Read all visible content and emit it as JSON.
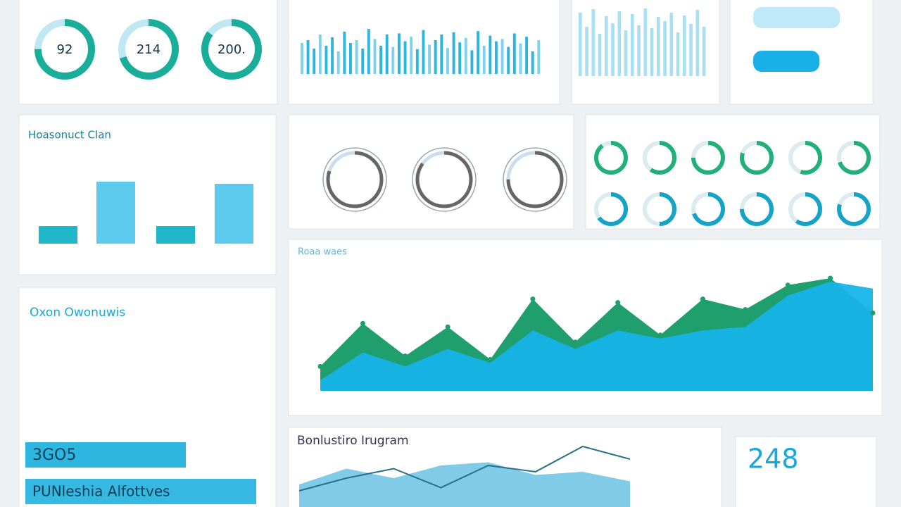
{
  "gauges": [
    {
      "label": "92",
      "percent": 75
    },
    {
      "label": "214",
      "percent": 70
    },
    {
      "label": "200.",
      "percent": 85
    }
  ],
  "column_panel": {
    "values": [
      55,
      60,
      45,
      70,
      50,
      65,
      40,
      75,
      55,
      60,
      45,
      80,
      62,
      50,
      70,
      48,
      72,
      58,
      66,
      44,
      78,
      52,
      60,
      70,
      46,
      74,
      56,
      64,
      42,
      76,
      50,
      68,
      58,
      62,
      48,
      72,
      54,
      66,
      40,
      60
    ]
  },
  "light_bars": {
    "values": [
      90,
      70,
      95,
      60,
      85,
      75,
      92,
      65,
      88,
      72,
      96,
      68,
      84,
      78,
      90,
      62,
      86,
      74,
      94,
      70
    ]
  },
  "hbars": {
    "values": [
      85,
      65
    ]
  },
  "bar_panel": {
    "title": "Hoasonuct Clan",
    "values": [
      25,
      88,
      25,
      85
    ]
  },
  "ring_panel": {
    "values": [
      80,
      85,
      75
    ]
  },
  "small_gauges": {
    "values": [
      90,
      60,
      75,
      80,
      55,
      70,
      65,
      50,
      70,
      75,
      60,
      80
    ]
  },
  "area_panel": {
    "title": "Roaa waes",
    "ylim": [
      0,
      100
    ],
    "series": [
      {
        "color": "#1f9e6e",
        "values": [
          21,
          58,
          30,
          55,
          27,
          79,
          42,
          76,
          48,
          79,
          70,
          91,
          97,
          67
        ]
      },
      {
        "color": "#16b4e8",
        "values": [
          9,
          33,
          21,
          36,
          24,
          52,
          36,
          52,
          45,
          52,
          55,
          82,
          94,
          88
        ]
      }
    ]
  },
  "list_panel": {
    "title": "Oxon Owonuwis",
    "banner1": "3GO5",
    "banner2": "PUNleshia Alfottves"
  },
  "bottom_chart": {
    "title": "Bonlustiro Irugram",
    "ylim": [
      0,
      100
    ],
    "area": [
      30,
      55,
      40,
      60,
      65,
      45,
      50,
      35
    ],
    "line": [
      20,
      40,
      55,
      25,
      60,
      50,
      90,
      70
    ]
  },
  "kpi": {
    "value": "248"
  }
}
